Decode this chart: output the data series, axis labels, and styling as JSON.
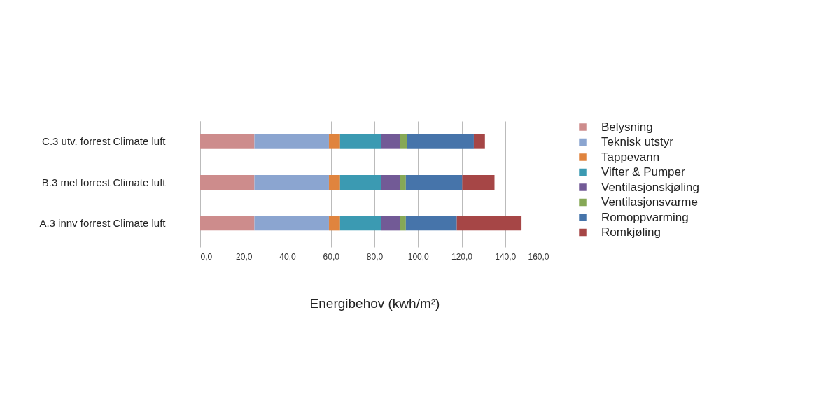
{
  "chart_data": {
    "type": "bar",
    "orientation": "horizontal",
    "stacked": true,
    "xlabel": "Energibehov (kwh/m²)",
    "categories": [
      "C.3 utv. forrest Climate luft",
      "B.3 mel forrest Climate luft",
      "A.3 innv forrest Climate luft"
    ],
    "series": [
      {
        "name": "Belysning",
        "color": "#cd8c8c",
        "values": [
          24.9,
          24.9,
          24.9
        ]
      },
      {
        "name": "Teknisk utstyr",
        "color": "#8ba5d0",
        "values": [
          34.2,
          34.2,
          34.2
        ]
      },
      {
        "name": "Tappevann",
        "color": "#e0843e",
        "values": [
          5.1,
          5.1,
          5.1
        ]
      },
      {
        "name": "Vifter & Pumper",
        "color": "#3b9ab2",
        "values": [
          18.7,
          18.7,
          18.7
        ]
      },
      {
        "name": "Ventilasjonskjøling",
        "color": "#725a96",
        "values": [
          8.7,
          8.7,
          8.9
        ]
      },
      {
        "name": "Ventilasjonsvarme",
        "color": "#86a856",
        "values": [
          3.3,
          2.8,
          2.6
        ]
      },
      {
        "name": "Romoppvarming",
        "color": "#4674aa",
        "values": [
          30.7,
          25.9,
          23.4
        ]
      },
      {
        "name": "Romkjøling",
        "color": "#a64646",
        "values": [
          5.1,
          14.8,
          29.7
        ]
      }
    ],
    "xlim": [
      0,
      160
    ],
    "xticks": [
      {
        "value": 0,
        "label": "0,0"
      },
      {
        "value": 20,
        "label": "20,0"
      },
      {
        "value": 40,
        "label": "40,0"
      },
      {
        "value": 60,
        "label": "60,0"
      },
      {
        "value": 80,
        "label": "80,0"
      },
      {
        "value": 100,
        "label": "100,0"
      },
      {
        "value": 120,
        "label": "120,0"
      },
      {
        "value": 140,
        "label": "140,0"
      },
      {
        "value": 160,
        "label": "160,0"
      }
    ],
    "grid": "x",
    "legend": "right"
  }
}
